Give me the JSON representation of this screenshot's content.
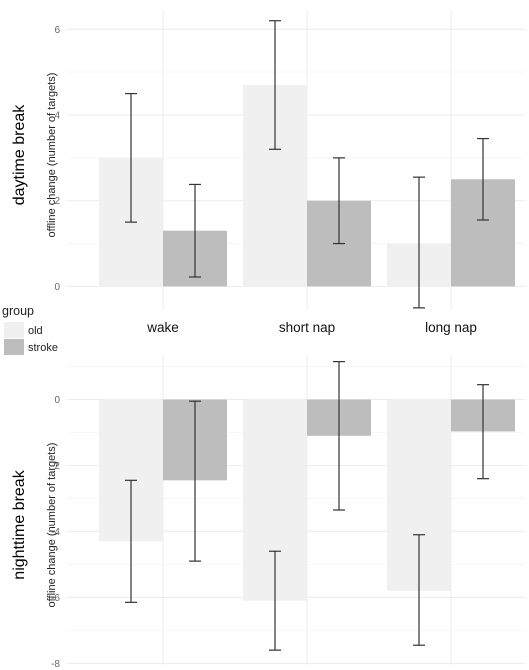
{
  "legend": {
    "title": "group",
    "placement": "left",
    "items": [
      {
        "label": "old",
        "color": "#f0f0f0"
      },
      {
        "label": "stroke",
        "color": "#bdbdbd"
      }
    ]
  },
  "chart_data": [
    {
      "type": "bar",
      "title": "daytime break",
      "ylabel": "offline change (number of targets)",
      "xlabel": "",
      "ylim": [
        -0.55,
        6.45
      ],
      "yticks": [
        0,
        2,
        4,
        6
      ],
      "categories": [
        "wake",
        "short nap",
        "long nap"
      ],
      "show_category_labels": true,
      "grid": true,
      "series": [
        {
          "name": "old",
          "color": "#f0f0f0",
          "values": [
            3.0,
            4.7,
            1.0
          ],
          "err_low": [
            1.5,
            3.2,
            -0.5
          ],
          "err_high": [
            4.5,
            6.2,
            2.55
          ]
        },
        {
          "name": "stroke",
          "color": "#bdbdbd",
          "values": [
            1.3,
            2.0,
            2.5
          ],
          "err_low": [
            0.22,
            1.0,
            1.55
          ],
          "err_high": [
            2.38,
            3.0,
            3.45
          ]
        }
      ]
    },
    {
      "type": "bar",
      "title": "nighttime break",
      "ylabel": "offline change (number of targets)",
      "xlabel": "",
      "ylim": [
        -8.05,
        1.35
      ],
      "yticks": [
        -8,
        -6,
        -4,
        -2,
        0
      ],
      "categories": [
        "wake",
        "short nap",
        "long nap"
      ],
      "show_category_labels": false,
      "grid": true,
      "series": [
        {
          "name": "old",
          "color": "#f0f0f0",
          "values": [
            -4.3,
            -6.1,
            -5.8
          ],
          "err_low": [
            -6.15,
            -7.6,
            -7.45
          ],
          "err_high": [
            -2.45,
            -4.6,
            -4.1
          ]
        },
        {
          "name": "stroke",
          "color": "#bdbdbd",
          "values": [
            -2.45,
            -1.1,
            -0.97
          ],
          "err_low": [
            -4.9,
            -3.35,
            -2.4
          ],
          "err_high": [
            -0.05,
            1.15,
            0.45
          ]
        }
      ]
    }
  ]
}
